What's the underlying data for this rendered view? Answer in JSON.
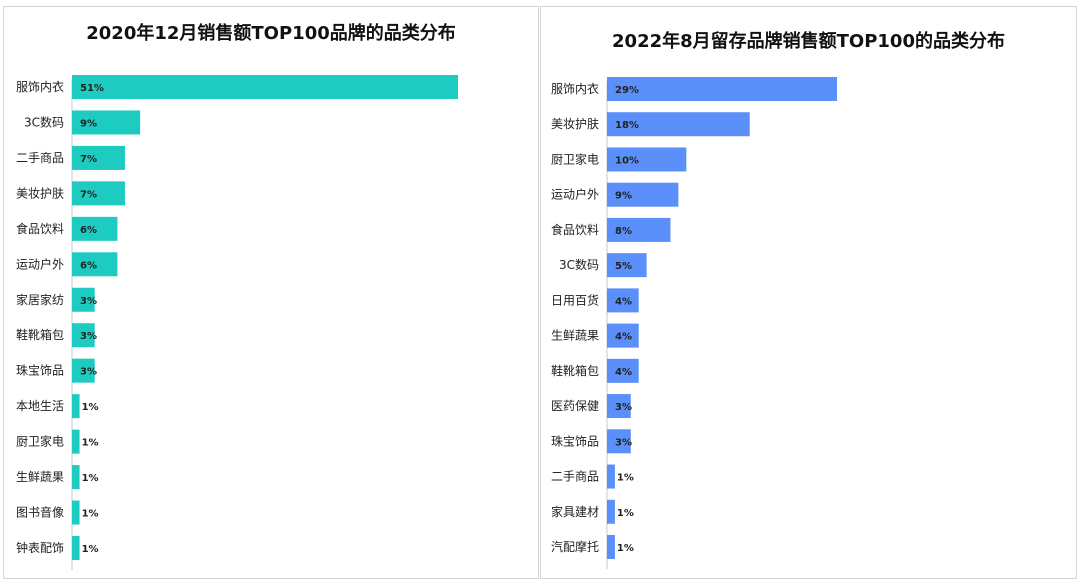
{
  "colors": {
    "left_bar": "#1ECBC1",
    "right_bar": "#5B8FF9",
    "axis": "#c8c8c8"
  },
  "chart_data": [
    {
      "type": "bar",
      "orientation": "horizontal",
      "title": "2020年12月销售额TOP100品牌的品类分布",
      "categories": [
        "服饰内衣",
        "3C数码",
        "二手商品",
        "美妆护肤",
        "食品饮料",
        "运动户外",
        "家居家纺",
        "鞋靴箱包",
        "珠宝饰品",
        "本地生活",
        "厨卫家电",
        "生鲜蔬果",
        "图书音像",
        "钟表配饰"
      ],
      "values": [
        51,
        9,
        7,
        7,
        6,
        6,
        3,
        3,
        3,
        1,
        1,
        1,
        1,
        1
      ],
      "value_labels": [
        "51%",
        "9%",
        "7%",
        "7%",
        "6%",
        "6%",
        "3%",
        "3%",
        "3%",
        "1%",
        "1%",
        "1%",
        "1%",
        "1%"
      ],
      "unit": "%",
      "grid": false,
      "legend": "none"
    },
    {
      "type": "bar",
      "orientation": "horizontal",
      "title": "2022年8月留存品牌销售额TOP100的品类分布",
      "categories": [
        "服饰内衣",
        "美妆护肤",
        "厨卫家电",
        "运动户外",
        "食品饮料",
        "3C数码",
        "日用百货",
        "生鲜蔬果",
        "鞋靴箱包",
        "医药保健",
        "珠宝饰品",
        "二手商品",
        "家具建材",
        "汽配摩托"
      ],
      "values": [
        29,
        18,
        10,
        9,
        8,
        5,
        4,
        4,
        4,
        3,
        3,
        1,
        1,
        1
      ],
      "value_labels": [
        "29%",
        "18%",
        "10%",
        "9%",
        "8%",
        "5%",
        "4%",
        "4%",
        "4%",
        "3%",
        "3%",
        "1%",
        "1%",
        "1%"
      ],
      "unit": "%",
      "grid": false,
      "legend": "none"
    }
  ]
}
